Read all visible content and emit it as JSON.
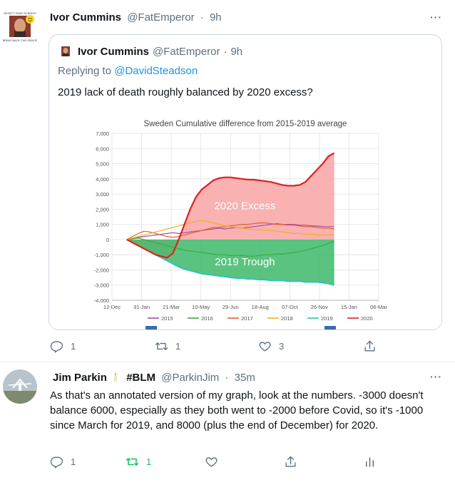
{
  "tweet1": {
    "author_name": "Ivor Cummins",
    "author_handle": "@FatEmperor",
    "dot": "·",
    "time": "9h",
    "more_icon": "···",
    "quoted": {
      "author_name": "Ivor Cummins",
      "author_handle": "@FatEmperor",
      "dot": "·",
      "time": "9h",
      "replying_prefix": "Replying to",
      "replying_to": "@DavidSteadson",
      "text": "2019 lack of death roughly balanced by 2020 excess?"
    },
    "actions": {
      "reply_count": "1",
      "retweet_count": "1",
      "like_count": "3"
    }
  },
  "tweet2": {
    "author_name": "Jim Parkin",
    "author_badge": "#BLM",
    "author_handle": "@ParkinJim",
    "dot": "·",
    "time": "35m",
    "more_icon": "···",
    "text": "As that's an annotated version of my graph, look at the numbers. -3000 doesn't balance 6000, especially as they both went to -2000 before Covid, so it's -1000 since March for 2019, and 8000 (plus the end of December) for 2020.",
    "actions": {
      "reply_count": "1",
      "retweet_count": "1"
    },
    "colors": {
      "retweet_active": "#17bf63"
    }
  },
  "chart_data": {
    "type": "line",
    "title": "Sweden Cumulative difference from 2015-2019 average",
    "x_ticks": [
      "12-Dec",
      "31-Jan",
      "21-Mar",
      "10-May",
      "29-Jun",
      "18-Aug",
      "07-Oct",
      "26-Nov",
      "15-Jan",
      "06-Mar"
    ],
    "y_ticks": [
      "7,000",
      "6,000",
      "5,000",
      "4,000",
      "3,000",
      "2,000",
      "1,000",
      "0",
      "-1,000",
      "-2,000",
      "-3,000",
      "-4,000"
    ],
    "ylim": [
      -4000,
      7000
    ],
    "annotations": [
      "2020 Excess",
      "2019 Trough"
    ],
    "legend": [
      "2015",
      "2016",
      "2017",
      "2018",
      "2019",
      "2020"
    ],
    "legend_colors": [
      "#a050a0",
      "#3cab3c",
      "#e06030",
      "#f0b020",
      "#30c0c0",
      "#e02020"
    ],
    "legend_placement": "bottom",
    "fill_excess_color": "#f8a8a8",
    "fill_trough_color": "#3cb868",
    "series": [
      {
        "name": "2015",
        "x": [
          0,
          10,
          20,
          30,
          40,
          50,
          60,
          70,
          80,
          90,
          100,
          110,
          120,
          130,
          140,
          150,
          160,
          170,
          180,
          190,
          200,
          210,
          220,
          230,
          240,
          250,
          260,
          270,
          280,
          290,
          300,
          310,
          320,
          330,
          340,
          350,
          360
        ],
        "y": [
          0,
          100,
          150,
          200,
          250,
          300,
          350,
          400,
          450,
          400,
          450,
          500,
          550,
          600,
          650,
          700,
          750,
          700,
          750,
          800,
          750,
          800,
          850,
          900,
          950,
          1000,
          1050,
          1000,
          1000,
          1000,
          950,
          950,
          900,
          900,
          850,
          850,
          850
        ]
      },
      {
        "name": "2016",
        "x": [
          0,
          10,
          20,
          30,
          40,
          50,
          60,
          70,
          80,
          90,
          100,
          110,
          120,
          130,
          140,
          150,
          160,
          170,
          180,
          190,
          200,
          210,
          220,
          230,
          240,
          250,
          260,
          270,
          280,
          290,
          300,
          310,
          320,
          330,
          340,
          350,
          360
        ],
        "y": [
          0,
          50,
          100,
          0,
          -100,
          -200,
          -300,
          -400,
          -500,
          -600,
          -700,
          -750,
          -800,
          -850,
          -900,
          -950,
          -1000,
          -1000,
          -1050,
          -1050,
          -1050,
          -1100,
          -1100,
          -1050,
          -1000,
          -1000,
          -950,
          -950,
          -900,
          -850,
          -800,
          -700,
          -600,
          -500,
          -400,
          -250,
          -100
        ]
      },
      {
        "name": "2017",
        "x": [
          0,
          10,
          20,
          30,
          40,
          50,
          60,
          70,
          80,
          90,
          100,
          110,
          120,
          130,
          140,
          150,
          160,
          170,
          180,
          190,
          200,
          210,
          220,
          230,
          240,
          250,
          260,
          270,
          280,
          290,
          300,
          310,
          320,
          330,
          340,
          350,
          360
        ],
        "y": [
          0,
          200,
          400,
          550,
          500,
          400,
          300,
          200,
          150,
          200,
          300,
          400,
          500,
          600,
          700,
          800,
          800,
          850,
          900,
          950,
          1000,
          1000,
          1050,
          1100,
          1100,
          1050,
          1000,
          1000,
          950,
          950,
          900,
          850,
          850,
          800,
          750,
          750,
          700
        ]
      },
      {
        "name": "2018",
        "x": [
          0,
          10,
          20,
          30,
          40,
          50,
          60,
          70,
          80,
          90,
          100,
          110,
          120,
          130,
          140,
          150,
          160,
          170,
          180,
          190,
          200,
          210,
          220,
          230,
          240,
          250,
          260,
          270,
          280,
          290,
          300,
          310,
          320,
          330,
          340,
          350,
          360
        ],
        "y": [
          0,
          100,
          200,
          300,
          400,
          500,
          600,
          700,
          800,
          900,
          1000,
          1100,
          1200,
          1250,
          1200,
          1100,
          1000,
          900,
          850,
          800,
          750,
          700,
          650,
          650,
          600,
          600,
          550,
          500,
          450,
          400,
          400,
          350,
          350,
          300,
          300,
          300,
          300
        ]
      },
      {
        "name": "2019",
        "x": [
          0,
          10,
          20,
          30,
          40,
          50,
          60,
          70,
          80,
          90,
          100,
          110,
          120,
          130,
          140,
          150,
          160,
          170,
          180,
          190,
          200,
          210,
          220,
          230,
          240,
          250,
          260,
          270,
          280,
          290,
          300,
          310,
          320,
          330,
          340,
          350,
          360
        ],
        "y": [
          0,
          -200,
          -400,
          -600,
          -800,
          -1000,
          -1200,
          -1400,
          -1600,
          -1800,
          -1950,
          -2050,
          -2150,
          -2250,
          -2300,
          -2350,
          -2400,
          -2450,
          -2500,
          -2550,
          -2550,
          -2600,
          -2600,
          -2650,
          -2650,
          -2700,
          -2700,
          -2700,
          -2750,
          -2750,
          -2750,
          -2800,
          -2800,
          -2800,
          -2850,
          -2900,
          -3000
        ]
      },
      {
        "name": "2020",
        "x": [
          0,
          10,
          20,
          30,
          40,
          50,
          60,
          70,
          80,
          90,
          100,
          110,
          120,
          130,
          140,
          150,
          160,
          170,
          180,
          190,
          200,
          210,
          220,
          230,
          240,
          250,
          260,
          270,
          280,
          290,
          300,
          310,
          320,
          330,
          340,
          350,
          360
        ],
        "y": [
          0,
          -200,
          -400,
          -600,
          -800,
          -1000,
          -1100,
          -1200,
          -900,
          0,
          1000,
          2000,
          2800,
          3300,
          3600,
          3900,
          4050,
          4100,
          4100,
          4050,
          4000,
          3950,
          3950,
          3900,
          3850,
          3800,
          3700,
          3600,
          3550,
          3550,
          3600,
          3800,
          4200,
          4600,
          5000,
          5500,
          5700
        ]
      }
    ]
  }
}
